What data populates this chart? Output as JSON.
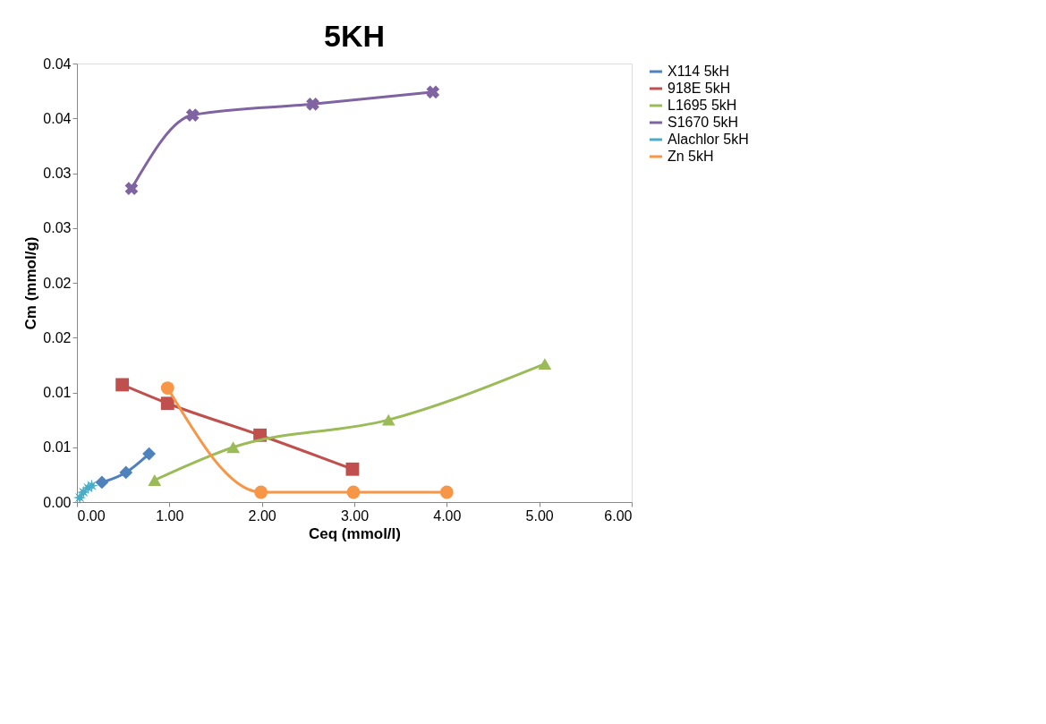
{
  "chart_data": {
    "type": "line",
    "title": "5KH",
    "xlabel": "Ceq (mmol/l)",
    "ylabel": "Cm (mmol/g)",
    "xlim": [
      0,
      6
    ],
    "xticks": [
      {
        "value": 0,
        "label": "0.00"
      },
      {
        "value": 1,
        "label": "1.00"
      },
      {
        "value": 2,
        "label": "2.00"
      },
      {
        "value": 3,
        "label": "3.00"
      },
      {
        "value": 4,
        "label": "4.00"
      },
      {
        "value": 5,
        "label": "5.00"
      },
      {
        "value": 6,
        "label": "6.00"
      }
    ],
    "ylim": [
      0,
      0.04
    ],
    "yticks": [
      {
        "value": 0,
        "label": "0.00"
      },
      {
        "value": 0.005,
        "label": "0.01"
      },
      {
        "value": 0.01,
        "label": "0.01"
      },
      {
        "value": 0.015,
        "label": "0.02"
      },
      {
        "value": 0.02,
        "label": "0.02"
      },
      {
        "value": 0.025,
        "label": "0.03"
      },
      {
        "value": 0.03,
        "label": "0.03"
      },
      {
        "value": 0.035,
        "label": "0.04"
      },
      {
        "value": 0.04,
        "label": "0.04"
      }
    ],
    "grid": false,
    "legend": "right",
    "series": [
      {
        "name": "X114 5kH",
        "color": "#4f81bd",
        "marker": "diamond",
        "x": [
          0.27,
          0.53,
          0.78
        ],
        "values": [
          0.0018,
          0.0027,
          0.0044
        ]
      },
      {
        "name": "918E 5kH",
        "color": "#c0504d",
        "marker": "square",
        "x": [
          0.49,
          0.98,
          1.98,
          2.98
        ],
        "values": [
          0.0107,
          0.009,
          0.0061,
          0.003
        ]
      },
      {
        "name": "L1695 5kH",
        "color": "#9bbb59",
        "marker": "triangle",
        "x": [
          0.84,
          1.69,
          3.37,
          5.06
        ],
        "values": [
          0.002,
          0.005,
          0.0075,
          0.0126
        ]
      },
      {
        "name": "S1670 5kH",
        "color": "#8064a2",
        "marker": "cross",
        "x": [
          0.59,
          1.25,
          2.55,
          3.85
        ],
        "values": [
          0.0286,
          0.0353,
          0.0363,
          0.0374
        ]
      },
      {
        "name": "Alachlor 5kH",
        "color": "#4bacc6",
        "marker": "star",
        "x": [
          0.03,
          0.07,
          0.12,
          0.16
        ],
        "values": [
          0.0004,
          0.0009,
          0.0013,
          0.0015
        ]
      },
      {
        "name": "Zn 5kH",
        "color": "#f79646",
        "marker": "circle",
        "x": [
          0.98,
          1.99,
          2.99,
          4.0
        ],
        "values": [
          0.0104,
          0.0009,
          0.0009,
          0.0009
        ]
      }
    ]
  }
}
